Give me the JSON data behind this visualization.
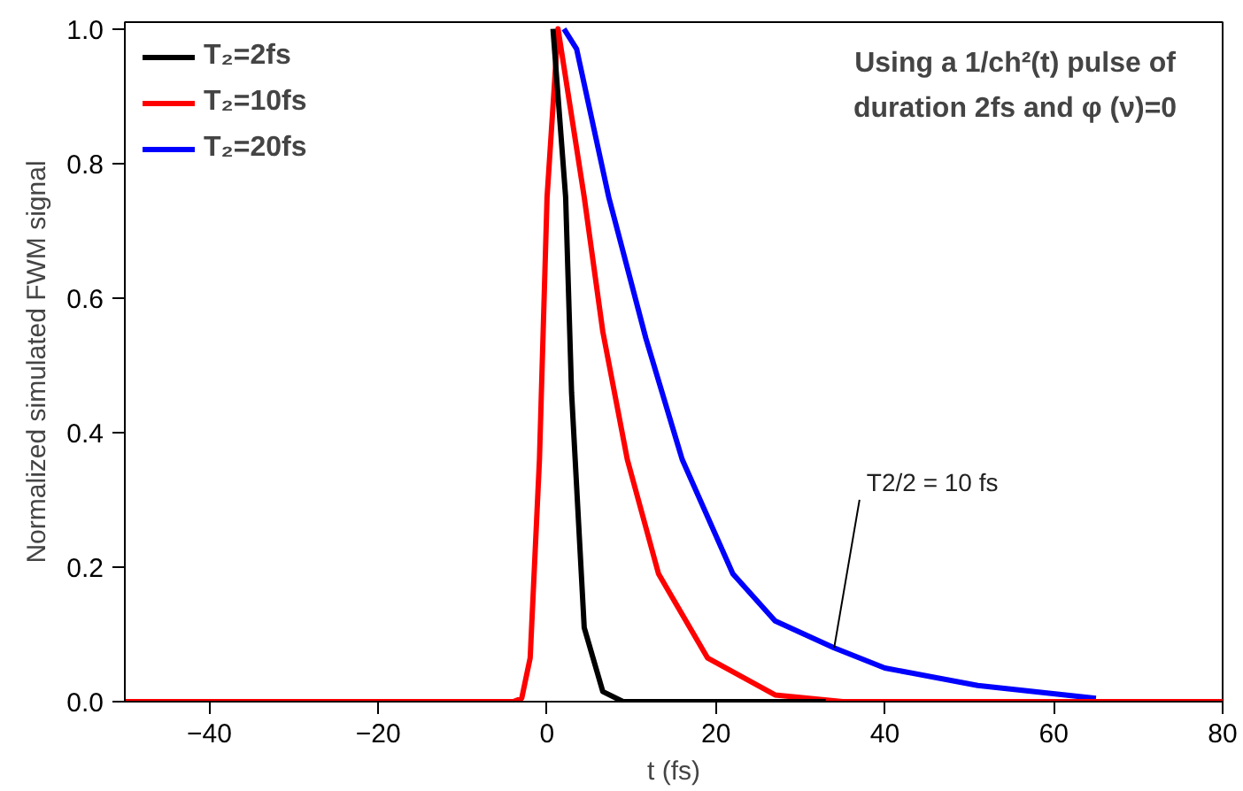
{
  "chart_data": {
    "type": "line",
    "xlabel": "t (fs)",
    "ylabel": "Normalized simulated FWM signal",
    "xlim": [
      -50,
      80
    ],
    "ylim": [
      0,
      1.01
    ],
    "xticks": [
      -40,
      -20,
      0,
      20,
      40,
      60,
      80
    ],
    "yticks": [
      {
        "value": 0,
        "label": "0.0"
      },
      {
        "value": 0.2,
        "label": "0.2"
      },
      {
        "value": 0.4,
        "label": "0.4"
      },
      {
        "value": 0.6,
        "label": "0.6"
      },
      {
        "value": 0.8,
        "label": "0.8"
      },
      {
        "value": 1,
        "label": "1.0"
      }
    ],
    "grid": false,
    "legend": "top left",
    "marker": "none",
    "line_style": "solid",
    "series": [
      {
        "name": "T₂=2fs",
        "color": "#000000",
        "x": [
          0.7,
          2.2,
          2.9,
          4.4,
          6.6,
          9,
          33
        ],
        "values": [
          1.0,
          0.75,
          0.46,
          0.11,
          0.015,
          0,
          0
        ]
      },
      {
        "name": "T₂=10fs",
        "color": "#ff0000",
        "x": [
          -50,
          -4,
          -3,
          -2,
          -0.9,
          0,
          1.3,
          4.4,
          6.6,
          9.5,
          13.2,
          19,
          27,
          35,
          80
        ],
        "values": [
          0,
          0,
          0.005,
          0.065,
          0.36,
          0.75,
          1.0,
          0.75,
          0.55,
          0.36,
          0.19,
          0.065,
          0.01,
          0,
          0
        ]
      },
      {
        "name": "T₂=20fs",
        "color": "#0000ff",
        "x": [
          2,
          3.5,
          7.3,
          11.7,
          16,
          22,
          27,
          34,
          40,
          51,
          65
        ],
        "values": [
          1.0,
          0.97,
          0.75,
          0.54,
          0.36,
          0.19,
          0.12,
          0.08,
          0.05,
          0.024,
          0.005
        ]
      }
    ],
    "annotations": [
      "Using a 1/ch²(t)  pulse of\nduration 2fs and  φ (ν)=0",
      {
        "text": "T2/2 = 10 fs",
        "x": 34,
        "y": 0.08
      }
    ]
  }
}
